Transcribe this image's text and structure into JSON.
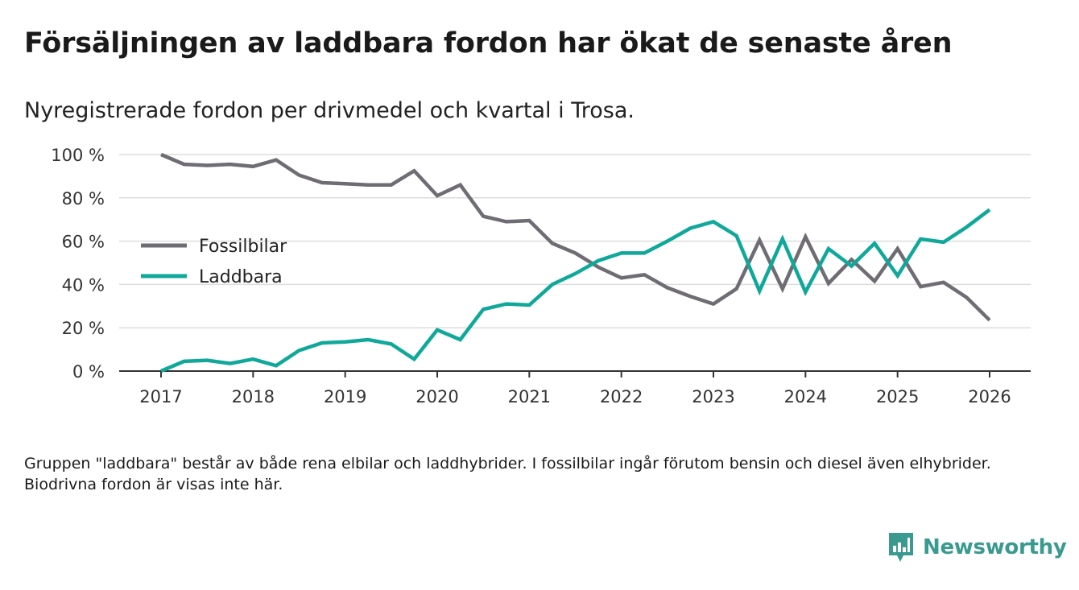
{
  "title": "Försäljningen av laddbara fordon har ökat de senaste åren",
  "subtitle": "Nyregistrerade fordon per drivmedel och kvartal i Trosa.",
  "footnote": "Gruppen \"laddbara\" består av både rena elbilar och laddhybrider. I fossilbilar ingår förutom bensin och diesel även elhybrider. Biodrivna fordon är visas inte här.",
  "brand": {
    "name": "Newsworthy"
  },
  "colors": {
    "fossil": "#6f6d73",
    "laddbara": "#0fa89a",
    "grid": "#dddddd",
    "axis": "#333333",
    "brand": "#3a9a8f"
  },
  "chart_data": {
    "type": "line",
    "title": "Försäljningen av laddbara fordon har ökat de senaste åren",
    "xlabel": "",
    "ylabel": "",
    "xlim": [
      2017,
      2026
    ],
    "ylim": [
      0,
      100
    ],
    "x_ticks": [
      2017,
      2018,
      2019,
      2020,
      2021,
      2022,
      2023,
      2024,
      2025,
      2026
    ],
    "y_ticks": [
      0,
      20,
      40,
      60,
      80,
      100
    ],
    "y_tick_labels": [
      "0 %",
      "20 %",
      "40 %",
      "60 %",
      "80 %",
      "100 %"
    ],
    "grid": true,
    "legend_position": "left-middle",
    "x": [
      2017,
      2017.25,
      2017.5,
      2017.75,
      2018,
      2018.25,
      2018.5,
      2018.75,
      2019,
      2019.25,
      2019.5,
      2019.75,
      2020,
      2020.25,
      2020.5,
      2020.75,
      2021,
      2021.25,
      2021.5,
      2021.75,
      2022,
      2022.25,
      2022.5,
      2022.75,
      2023,
      2023.25,
      2023.5,
      2023.75,
      2024,
      2024.25,
      2024.5,
      2024.75,
      2025,
      2025.25,
      2025.5,
      2025.75,
      2026
    ],
    "series": [
      {
        "name": "Fossilbilar",
        "values": [
          100,
          95.5,
          95,
          95.5,
          94.5,
          97.5,
          90.5,
          87,
          86.5,
          86,
          86,
          92.5,
          81,
          86,
          71.5,
          69,
          69.5,
          59,
          54.5,
          48,
          43,
          44.5,
          38.5,
          34.5,
          31,
          38,
          60.5,
          38,
          62,
          40.5,
          51.5,
          41.5,
          56.5,
          39,
          41,
          34,
          23.5
        ]
      },
      {
        "name": "Laddbara",
        "values": [
          0,
          4.5,
          5,
          3.5,
          5.5,
          2.5,
          9.5,
          13,
          13.5,
          14.5,
          12.5,
          5.5,
          19,
          14.5,
          28.5,
          31,
          30.5,
          40,
          45,
          51,
          54.5,
          54.5,
          60,
          66,
          69,
          62.5,
          37,
          61,
          36.5,
          56.5,
          48.5,
          59,
          44,
          61,
          59.5,
          66.5,
          74.5
        ]
      }
    ]
  }
}
